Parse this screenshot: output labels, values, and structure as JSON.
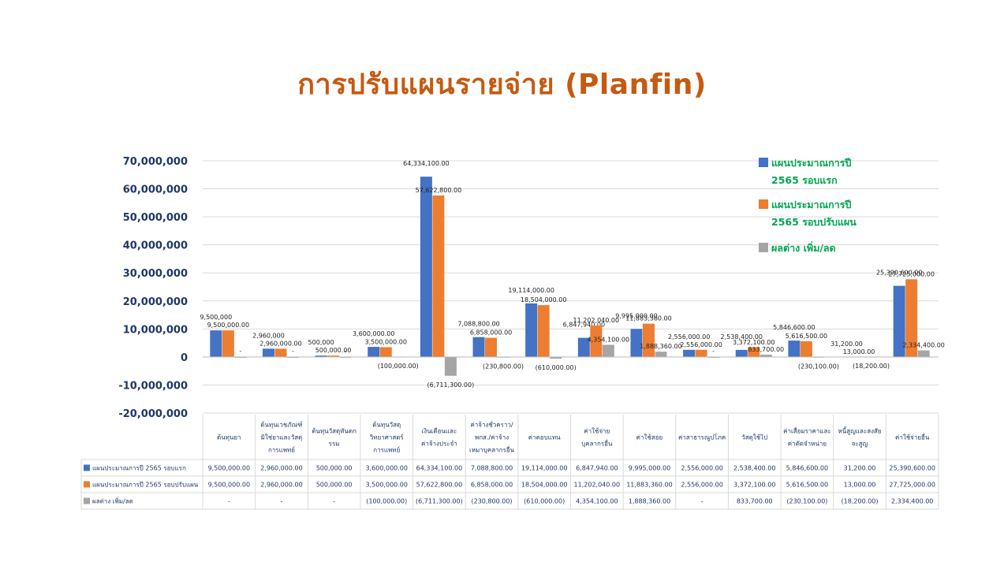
{
  "title": "การปรับแผนรายจ่าย (Planfin)",
  "chart_data": {
    "type": "bar",
    "ylim": [
      -20000000,
      70000000
    ],
    "yticks": [
      "70,000,000",
      "60,000,000",
      "50,000,000",
      "40,000,000",
      "30,000,000",
      "20,000,000",
      "10,000,000",
      "0",
      "-10,000,000",
      "-20,000,000"
    ],
    "ytick_values": [
      70000000,
      60000000,
      50000000,
      40000000,
      30000000,
      20000000,
      10000000,
      0,
      -10000000,
      -20000000
    ],
    "grid": true,
    "legend_position": "top-right",
    "categories": [
      [
        "ต้นทุนยา"
      ],
      [
        "ต้นทุนเวชภัณฑ์",
        "มิใช่ยาและวัสดุ",
        "การแพทย์"
      ],
      [
        "ต้นทุนวัสดุทันตก",
        "รรม"
      ],
      [
        "ต้นทุนวัสดุ",
        "วิทยาศาสตร์",
        "การแพทย์"
      ],
      [
        "เงินเดือนและ",
        "ค่าจ้างประจำ"
      ],
      [
        "ค่าจ้างชั่วคราว/",
        "พกส./ค่าจ้าง",
        "เหมาบุคลากรอื่น"
      ],
      [
        "ค่าตอบแทน"
      ],
      [
        "ค่าใช้จ่าย",
        "บุคลากรอื่น"
      ],
      [
        "ค่าใช้สอย"
      ],
      [
        "ค่าสาธารณูปโภค"
      ],
      [
        "วัสดุใช้ไป"
      ],
      [
        "ค่าเสื่อมราคาและ",
        "ค่าตัดจำหน่าย"
      ],
      [
        "หนี้สูญและสงสัย",
        "จะสูญ"
      ],
      [
        "ค่าใช้จ่ายอื่น"
      ]
    ],
    "series": [
      {
        "name_lines": [
          "แผนประมาณการปี",
          "2565 รอบแรก"
        ],
        "table_label": "แผนประมาณการปี 2565 รอบแรก",
        "color": "#4472c4",
        "values": [
          9500000,
          2960000,
          500000,
          3600000,
          64334100,
          7088800,
          19114000,
          6847940,
          9995000,
          2556000,
          2538400,
          5846600,
          31200,
          25390600
        ],
        "labels": [
          "9,500,000",
          "2,960,000",
          "500,000",
          "3,600,000.00",
          "64,334,100.00",
          "7,088,800.00",
          "19,114,000.00",
          "6,847,940.00",
          "9,995,000.00",
          "2,556,000.00",
          "2,538,400.00",
          "5,846,600.00",
          "31,200.00",
          "25,390,600.00"
        ],
        "table": [
          "9,500,000.00",
          "2,960,000.00",
          "500,000.00",
          "3,600,000.00",
          "64,334,100.00",
          "7,088,800.00",
          "19,114,000.00",
          "6,847,940.00",
          "9,995,000.00",
          "2,556,000.00",
          "2,538,400.00",
          "5,846,600.00",
          "31,200.00",
          "25,390,600.00"
        ]
      },
      {
        "name_lines": [
          "แผนประมาณการปี",
          "2565 รอบปรับแผน"
        ],
        "table_label": "แผนประมาณการปี 2565 รอบปรับแผน",
        "color": "#ed7d31",
        "values": [
          9500000,
          2960000,
          500000,
          3500000,
          57622800,
          6858000,
          18504000,
          11202040,
          11883360,
          2556000,
          3372100,
          5616500,
          13000,
          27725000
        ],
        "labels": [
          "9,500,000.00",
          "2,960,000.00",
          "500,000.00",
          "3,500,000.00",
          "57,622,800.00",
          "6,858,000.00",
          "18,504,000.00",
          "11,202,040.00",
          "11,883,360.00",
          "2,556,000.00",
          "3,372,100.00",
          "5,616,500.00",
          "13,000.00",
          "27,725,000.00"
        ],
        "table": [
          "9,500,000.00",
          "2,960,000.00",
          "500,000.00",
          "3,500,000.00",
          "57,622,800.00",
          "6,858,000.00",
          "18,504,000.00",
          "11,202,040.00",
          "11,883,360.00",
          "2,556,000.00",
          "3,372,100.00",
          "5,616,500.00",
          "13,000.00",
          "27,725,000.00"
        ]
      },
      {
        "name_lines": [
          "ผลต่าง เพิ่ม/ลด"
        ],
        "table_label": "ผลต่าง เพิ่ม/ลด",
        "color": "#a5a5a5",
        "values": [
          0,
          0,
          0,
          -100000,
          -6711300,
          -230800,
          -610000,
          4354100,
          1888360,
          0,
          833700,
          -230100,
          -18200,
          2334400
        ],
        "labels": [
          "-",
          "-",
          "-",
          "(100,000.00)",
          "(6,711,300.00)",
          "(230,800.00)",
          "(610,000.00)",
          "4,354,100.00",
          "1,888,360.00",
          "-",
          "833,700.00",
          "(230,100.00)",
          "(18,200.00)",
          "2,334,400.00"
        ],
        "table": [
          "-",
          "-",
          "-",
          "(100,000.00)",
          "(6,711,300.00)",
          "(230,800.00)",
          "(610,000.00)",
          "4,354,100.00",
          "1,888,360.00",
          "-",
          "833,700.00",
          "(230,100.00)",
          "(18,200.00)",
          "2,334,400.00"
        ]
      }
    ]
  }
}
